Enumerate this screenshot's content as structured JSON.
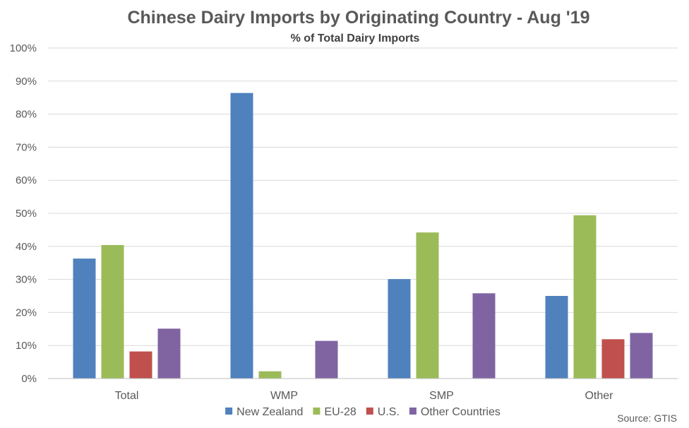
{
  "chart_data": {
    "type": "bar",
    "title": "Chinese Dairy Imports by Originating Country - Aug '19",
    "subtitle": "% of Total Dairy Imports",
    "categories": [
      "Total",
      "WMP",
      "SMP",
      "Other"
    ],
    "series": [
      {
        "name": "New Zealand",
        "color": "#4f81bd",
        "values": [
          36.3,
          86.4,
          30.1,
          25.0
        ]
      },
      {
        "name": "EU-28",
        "color": "#9bbb59",
        "values": [
          40.4,
          2.2,
          44.2,
          49.4
        ]
      },
      {
        "name": "U.S.",
        "color": "#c0504d",
        "values": [
          8.2,
          0,
          0,
          11.9
        ]
      },
      {
        "name": "Other Countries",
        "color": "#8064a2",
        "values": [
          15.1,
          11.4,
          25.8,
          13.8
        ]
      }
    ],
    "ylim": [
      0,
      100
    ],
    "y_ticks": [
      "0%",
      "10%",
      "20%",
      "30%",
      "40%",
      "50%",
      "60%",
      "70%",
      "80%",
      "90%",
      "100%"
    ],
    "xlabel": "",
    "ylabel": "",
    "grid": true,
    "legend_position": "bottom",
    "source": "Source: GTIS"
  }
}
